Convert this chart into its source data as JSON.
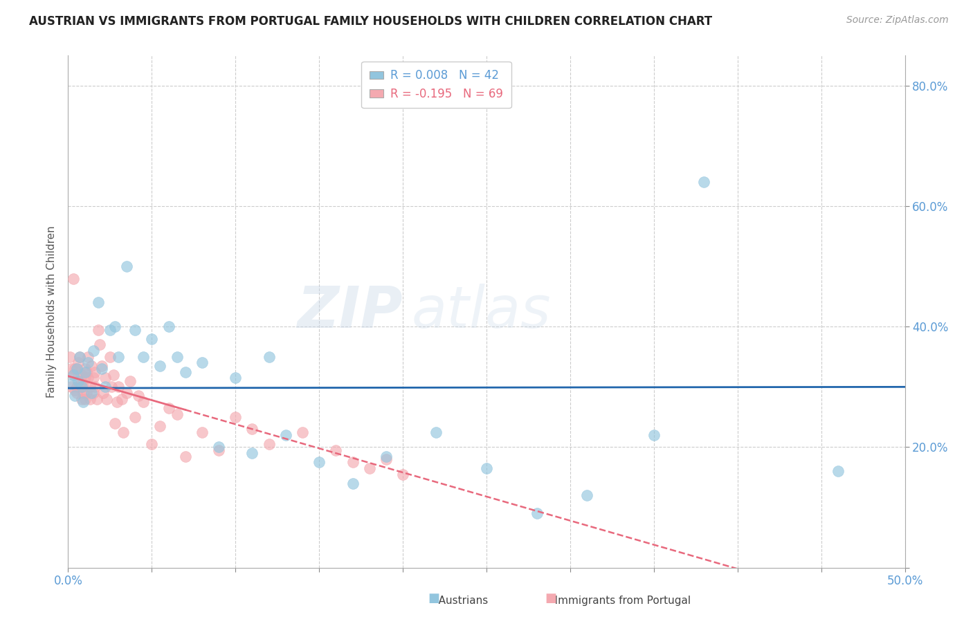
{
  "title": "AUSTRIAN VS IMMIGRANTS FROM PORTUGAL FAMILY HOUSEHOLDS WITH CHILDREN CORRELATION CHART",
  "source": "Source: ZipAtlas.com",
  "ylabel": "Family Households with Children",
  "xlim": [
    0.0,
    0.5
  ],
  "ylim": [
    0.0,
    0.85
  ],
  "xticks": [
    0.0,
    0.05,
    0.1,
    0.15,
    0.2,
    0.25,
    0.3,
    0.35,
    0.4,
    0.45,
    0.5
  ],
  "yticks": [
    0.0,
    0.2,
    0.4,
    0.6,
    0.8
  ],
  "legend_r_austrians": "R = 0.008",
  "legend_n_austrians": "N = 42",
  "legend_r_portugal": "R = -0.195",
  "legend_n_portugal": "N = 69",
  "color_austrians": "#92c5de",
  "color_portugal": "#f4a9b0",
  "color_line_austrians": "#2166ac",
  "color_line_portugal": "#e8697d",
  "watermark_zip": "ZIP",
  "watermark_atlas": "atlas",
  "background_color": "#ffffff",
  "grid_color": "#cccccc",
  "austrians_x": [
    0.002,
    0.003,
    0.004,
    0.005,
    0.006,
    0.007,
    0.008,
    0.009,
    0.01,
    0.012,
    0.014,
    0.015,
    0.018,
    0.02,
    0.022,
    0.025,
    0.028,
    0.03,
    0.035,
    0.04,
    0.045,
    0.05,
    0.055,
    0.06,
    0.065,
    0.07,
    0.08,
    0.09,
    0.1,
    0.11,
    0.12,
    0.13,
    0.15,
    0.17,
    0.19,
    0.22,
    0.25,
    0.28,
    0.31,
    0.35,
    0.38,
    0.46
  ],
  "austrians_y": [
    0.305,
    0.32,
    0.285,
    0.33,
    0.31,
    0.35,
    0.3,
    0.275,
    0.325,
    0.34,
    0.29,
    0.36,
    0.44,
    0.33,
    0.3,
    0.395,
    0.4,
    0.35,
    0.5,
    0.395,
    0.35,
    0.38,
    0.335,
    0.4,
    0.35,
    0.325,
    0.34,
    0.2,
    0.315,
    0.19,
    0.35,
    0.22,
    0.175,
    0.14,
    0.185,
    0.225,
    0.165,
    0.09,
    0.12,
    0.22,
    0.64,
    0.16
  ],
  "portugal_x": [
    0.001,
    0.002,
    0.002,
    0.003,
    0.003,
    0.004,
    0.004,
    0.005,
    0.005,
    0.005,
    0.006,
    0.006,
    0.007,
    0.007,
    0.008,
    0.008,
    0.008,
    0.009,
    0.009,
    0.01,
    0.01,
    0.01,
    0.011,
    0.011,
    0.012,
    0.012,
    0.013,
    0.013,
    0.014,
    0.015,
    0.015,
    0.016,
    0.016,
    0.017,
    0.018,
    0.019,
    0.02,
    0.021,
    0.022,
    0.023,
    0.025,
    0.026,
    0.027,
    0.028,
    0.029,
    0.03,
    0.032,
    0.033,
    0.035,
    0.037,
    0.04,
    0.042,
    0.045,
    0.05,
    0.055,
    0.06,
    0.065,
    0.07,
    0.08,
    0.09,
    0.1,
    0.11,
    0.12,
    0.14,
    0.16,
    0.17,
    0.18,
    0.2,
    0.19
  ],
  "portugal_y": [
    0.35,
    0.33,
    0.3,
    0.48,
    0.32,
    0.33,
    0.295,
    0.33,
    0.3,
    0.29,
    0.32,
    0.34,
    0.3,
    0.35,
    0.31,
    0.28,
    0.32,
    0.3,
    0.29,
    0.315,
    0.33,
    0.28,
    0.325,
    0.29,
    0.315,
    0.35,
    0.3,
    0.28,
    0.335,
    0.315,
    0.29,
    0.3,
    0.325,
    0.28,
    0.395,
    0.37,
    0.335,
    0.29,
    0.315,
    0.28,
    0.35,
    0.3,
    0.32,
    0.24,
    0.275,
    0.3,
    0.28,
    0.225,
    0.29,
    0.31,
    0.25,
    0.285,
    0.275,
    0.205,
    0.235,
    0.265,
    0.255,
    0.185,
    0.225,
    0.195,
    0.25,
    0.23,
    0.205,
    0.225,
    0.195,
    0.175,
    0.165,
    0.155,
    0.18
  ],
  "austria_line_y_intercept": 0.298,
  "austria_line_slope": 0.004,
  "portugal_line_y_intercept": 0.318,
  "portugal_line_slope": -0.8
}
